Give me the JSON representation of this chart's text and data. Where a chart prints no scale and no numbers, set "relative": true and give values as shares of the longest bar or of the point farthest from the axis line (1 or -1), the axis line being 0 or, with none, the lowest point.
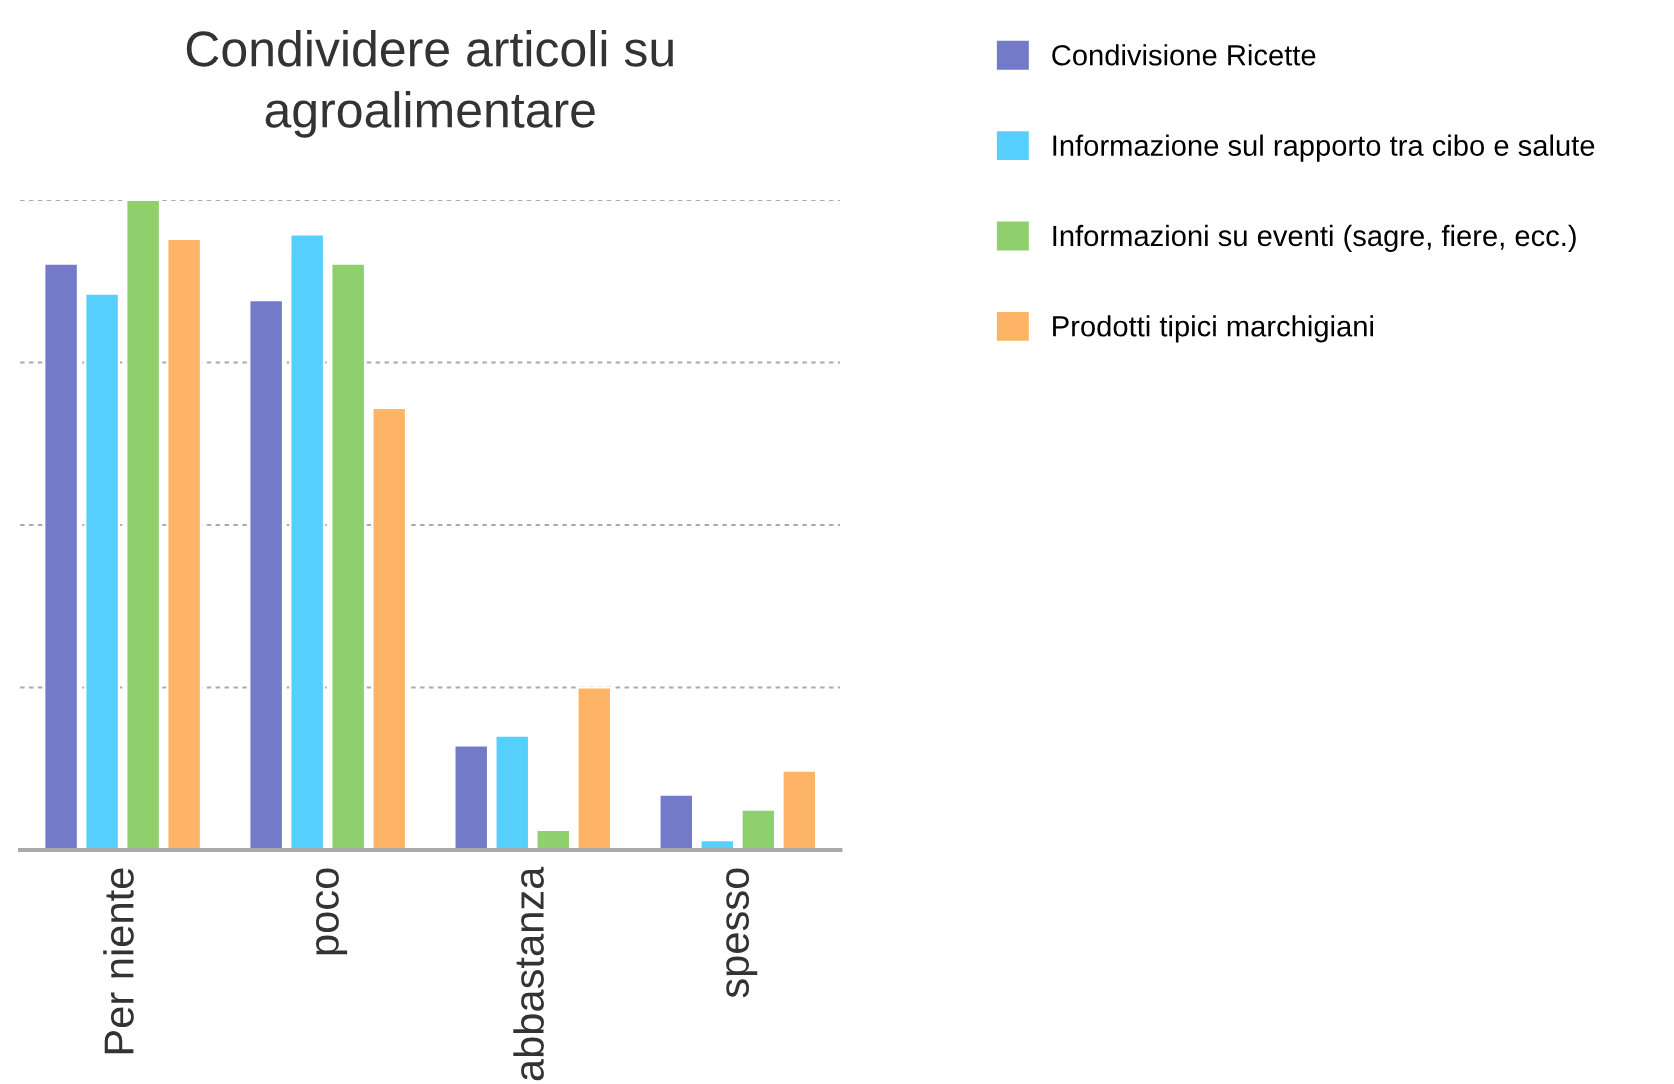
{
  "chart_data": {
    "type": "bar",
    "title": "Condividere articoli su\nagroalimentare",
    "categories": [
      "Per niente",
      "poco",
      "abbastanza",
      "spesso"
    ],
    "relative": true,
    "grid": "y",
    "legend": "right",
    "series": [
      {
        "name": "Condivisione Ricette",
        "color": "#737bc9",
        "values": [
          0.902,
          0.846,
          0.161,
          0.085
        ]
      },
      {
        "name": "Informazione sul rapporto tra cibo e salute",
        "color": "#57cffc",
        "values": [
          0.856,
          0.947,
          0.176,
          0.015
        ]
      },
      {
        "name": "Informazioni su eventi (sagre, fiere, ecc.)",
        "color": "#8fcf6c",
        "values": [
          1,
          0.902,
          0.031,
          0.062
        ]
      },
      {
        "name": "Prodotti tipici marchigiani",
        "color": "#fdb466",
        "values": [
          0.94,
          0.68,
          0.25,
          0.122
        ]
      }
    ]
  }
}
